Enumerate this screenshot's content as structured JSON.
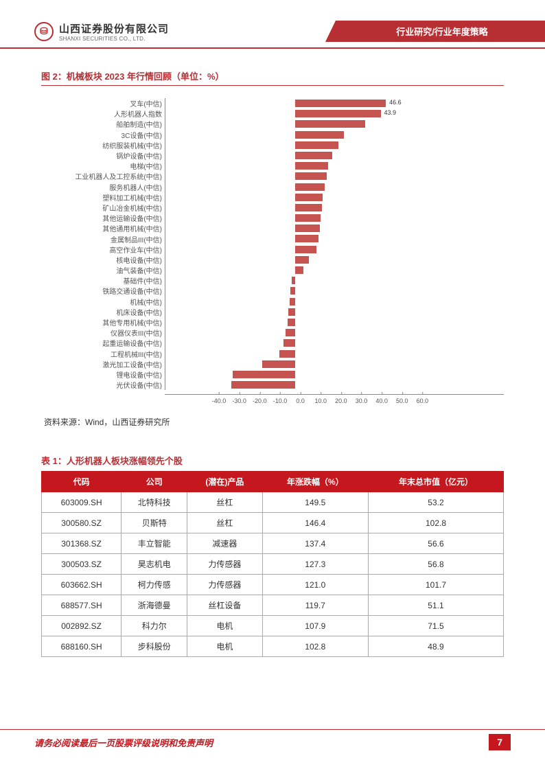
{
  "header": {
    "logo_glyph": "⛁",
    "company_cn": "山西证券股份有限公司",
    "company_en": "SHANXI SECURITIES CO., LTD.",
    "right_label": "行业研究/行业年度策略"
  },
  "figure": {
    "title": "图 2：机械板块 2023 年行情回顾（单位：%）",
    "type": "bar-horizontal",
    "x_min": -40,
    "x_max": 60,
    "x_step": 10,
    "bar_color": "#c5534f",
    "zero_position_pct": 40,
    "scale_pct_per_unit": 0.6,
    "categories": [
      {
        "label": "叉车(中信)",
        "value": 46.6,
        "show_label": true
      },
      {
        "label": "人形机器人指数",
        "value": 43.9,
        "show_label": true
      },
      {
        "label": "船舶制造(中信)",
        "value": 36.0
      },
      {
        "label": "3C设备(中信)",
        "value": 25.0
      },
      {
        "label": "纺织服装机械(中信)",
        "value": 22.0
      },
      {
        "label": "锅炉设备(中信)",
        "value": 19.0
      },
      {
        "label": "电梯(中信)",
        "value": 17.0
      },
      {
        "label": "工业机器人及工控系统(中信)",
        "value": 16.0
      },
      {
        "label": "服务机器人(中信)",
        "value": 15.0
      },
      {
        "label": "塑料加工机械(中信)",
        "value": 14.0
      },
      {
        "label": "矿山冶金机械(中信)",
        "value": 13.5
      },
      {
        "label": "其他运输设备(中信)",
        "value": 13.0
      },
      {
        "label": "其他通用机械(中信)",
        "value": 12.5
      },
      {
        "label": "金属制品III(中信)",
        "value": 12.0
      },
      {
        "label": "高空作业车(中信)",
        "value": 11.0
      },
      {
        "label": "核电设备(中信)",
        "value": 7.0
      },
      {
        "label": "油气装备(中信)",
        "value": 4.0
      },
      {
        "label": "基础件(中信)",
        "value": -2.0
      },
      {
        "label": "铁路交通设备(中信)",
        "value": -2.5
      },
      {
        "label": "机械(中信)",
        "value": -3.0
      },
      {
        "label": "机床设备(中信)",
        "value": -3.5
      },
      {
        "label": "其他专用机械(中信)",
        "value": -4.0
      },
      {
        "label": "仪器仪表III(中信)",
        "value": -5.0
      },
      {
        "label": "起重运输设备(中信)",
        "value": -6.0
      },
      {
        "label": "工程机械III(中信)",
        "value": -8.0
      },
      {
        "label": "激光加工设备(中信)",
        "value": -17.0
      },
      {
        "label": "锂电设备(中信)",
        "value": -32.0
      },
      {
        "label": "光伏设备(中信)",
        "value": -33.0
      }
    ],
    "x_ticks": [
      "-40.0",
      "-30.0",
      "-20.0",
      "-10.0",
      "0.0",
      "10.0",
      "20.0",
      "30.0",
      "40.0",
      "50.0",
      "60.0"
    ],
    "source": "资料来源：Wind，山西证券研究所"
  },
  "table": {
    "title": "表 1：人形机器人板块涨幅领先个股",
    "columns": [
      "代码",
      "公司",
      "(潜在)产品",
      "年涨跌幅（%）",
      "年末总市值（亿元）"
    ],
    "rows": [
      [
        "603009.SH",
        "北特科技",
        "丝杠",
        "149.5",
        "53.2"
      ],
      [
        "300580.SZ",
        "贝斯特",
        "丝杠",
        "146.4",
        "102.8"
      ],
      [
        "301368.SZ",
        "丰立智能",
        "减速器",
        "137.4",
        "56.6"
      ],
      [
        "300503.SZ",
        "昊志机电",
        "力传感器",
        "127.3",
        "56.8"
      ],
      [
        "603662.SH",
        "柯力传感",
        "力传感器",
        "121.0",
        "101.7"
      ],
      [
        "688577.SH",
        "浙海德曼",
        "丝杠设备",
        "119.7",
        "51.1"
      ],
      [
        "002892.SZ",
        "科力尔",
        "电机",
        "107.9",
        "71.5"
      ],
      [
        "688160.SH",
        "步科股份",
        "电机",
        "102.8",
        "48.9"
      ]
    ]
  },
  "footer": {
    "text": "请务必阅读最后一页股票评级说明和免责声明",
    "page": "7"
  }
}
